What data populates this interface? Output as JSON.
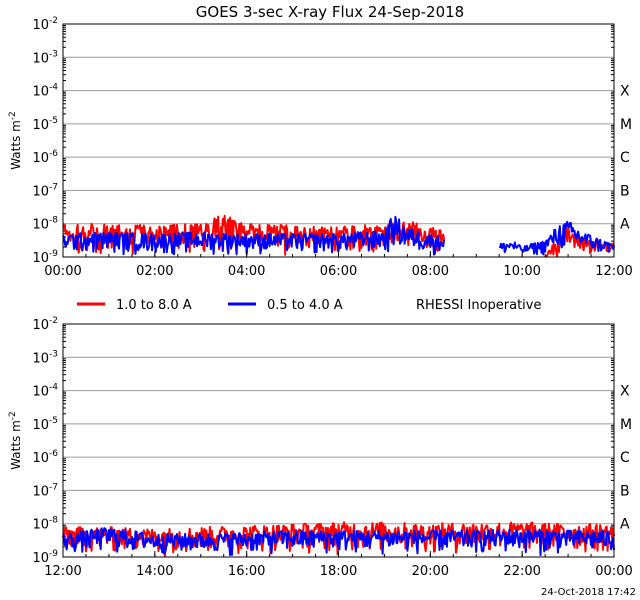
{
  "chart_data": {
    "type": "line",
    "title": "GOES 3-sec X-ray Flux   24-Sep-2018",
    "ylabel": "Watts m",
    "ylabel_superscript": "-2",
    "y_scale": "log",
    "ylim": [
      1e-09,
      0.01
    ],
    "y_ticks": [
      {
        "base": "10",
        "exp": "-2",
        "value": 0.01
      },
      {
        "base": "10",
        "exp": "-3",
        "value": 0.001
      },
      {
        "base": "10",
        "exp": "-4",
        "value": 0.0001
      },
      {
        "base": "10",
        "exp": "-5",
        "value": 1e-05
      },
      {
        "base": "10",
        "exp": "-6",
        "value": 1e-06
      },
      {
        "base": "10",
        "exp": "-7",
        "value": 1e-07
      },
      {
        "base": "10",
        "exp": "-8",
        "value": 1e-08
      },
      {
        "base": "10",
        "exp": "-9",
        "value": 1e-09
      }
    ],
    "flare_classes": [
      {
        "label": "X",
        "value": 0.0001
      },
      {
        "label": "M",
        "value": 1e-05
      },
      {
        "label": "C",
        "value": 1e-06
      },
      {
        "label": "B",
        "value": 1e-07
      },
      {
        "label": "A",
        "value": 1e-08
      }
    ],
    "legend": [
      {
        "label": "1.0 to 8.0 A",
        "color": "#ff0000"
      },
      {
        "label": "0.5 to 4.0 A",
        "color": "#0000ff"
      }
    ],
    "status_note": "RHESSI Inoperative",
    "footer": "24-Oct-2018 17:42",
    "panels": [
      {
        "name": "morning",
        "x_range_hours": [
          0,
          12
        ],
        "x_tick_labels": [
          "00:00",
          "02:00",
          "04:00",
          "06:00",
          "08:00",
          "10:00",
          "12:00"
        ],
        "series": [
          {
            "name": "1.0 to 8.0 A",
            "color": "#ff0000",
            "segments": [
              {
                "t": [
                  0.0,
                  1.0,
                  2.0,
                  3.0,
                  3.5,
                  4.0,
                  5.0,
                  6.0,
                  6.5,
                  7.0,
                  7.5,
                  8.0,
                  8.3
                ],
                "log10_hi": [
                  -8.0,
                  -8.0,
                  -8.05,
                  -8.0,
                  -7.7,
                  -8.0,
                  -8.05,
                  -8.1,
                  -8.05,
                  -8.0,
                  -7.9,
                  -8.1,
                  -8.2
                ],
                "log10_lo": [
                  -9.0,
                  -9.0,
                  -9.0,
                  -9.0,
                  -9.0,
                  -9.0,
                  -9.0,
                  -9.0,
                  -9.0,
                  -9.0,
                  -9.0,
                  -9.0,
                  -9.0
                ]
              },
              {
                "t": [
                  10.5,
                  10.8,
                  11.0,
                  11.2,
                  11.5,
                  12.0
                ],
                "log10_hi": [
                  -9.0,
                  -8.3,
                  -8.1,
                  -8.3,
                  -8.5,
                  -8.6
                ],
                "log10_lo": [
                  -9.0,
                  -9.0,
                  -9.0,
                  -9.0,
                  -9.0,
                  -9.0
                ]
              }
            ]
          },
          {
            "name": "0.5 to 4.0 A",
            "color": "#0000ff",
            "segments": [
              {
                "t": [
                  0.0,
                  1.0,
                  2.0,
                  3.0,
                  4.0,
                  5.0,
                  6.0,
                  7.0,
                  7.2,
                  7.5,
                  8.0,
                  8.3
                ],
                "log10_hi": [
                  -8.3,
                  -8.25,
                  -8.3,
                  -8.25,
                  -8.3,
                  -8.3,
                  -8.3,
                  -8.2,
                  -7.7,
                  -8.1,
                  -8.3,
                  -8.4
                ],
                "log10_lo": [
                  -9.0,
                  -9.0,
                  -9.0,
                  -9.0,
                  -9.0,
                  -9.0,
                  -9.0,
                  -9.0,
                  -9.0,
                  -9.0,
                  -9.0,
                  -9.0
                ]
              },
              {
                "t": [
                  9.5,
                  9.8,
                  10.0,
                  10.2,
                  10.5,
                  10.8,
                  11.0,
                  11.3,
                  11.6,
                  12.0
                ],
                "log10_hi": [
                  -8.6,
                  -8.5,
                  -8.7,
                  -8.6,
                  -8.5,
                  -8.0,
                  -7.9,
                  -8.2,
                  -8.4,
                  -8.6
                ],
                "log10_lo": [
                  -9.0,
                  -9.0,
                  -9.0,
                  -9.0,
                  -9.0,
                  -9.0,
                  -9.0,
                  -9.0,
                  -9.0,
                  -9.0
                ]
              }
            ]
          }
        ]
      },
      {
        "name": "afternoon",
        "x_range_hours": [
          12,
          24
        ],
        "x_tick_labels": [
          "12:00",
          "14:00",
          "16:00",
          "18:00",
          "20:00",
          "22:00",
          "00:00"
        ],
        "series": [
          {
            "name": "1.0 to 8.0 A",
            "color": "#ff0000",
            "segments": [
              {
                "t": [
                  12.0,
                  13.0,
                  14.0,
                  15.0,
                  16.0,
                  17.0,
                  18.0,
                  19.0,
                  20.0,
                  21.0,
                  22.0,
                  23.0,
                  24.0
                ],
                "log10_hi": [
                  -8.1,
                  -8.1,
                  -8.15,
                  -8.1,
                  -8.05,
                  -8.0,
                  -7.95,
                  -7.95,
                  -8.0,
                  -7.95,
                  -7.95,
                  -8.0,
                  -8.0
                ],
                "log10_lo": [
                  -9.0,
                  -9.0,
                  -9.0,
                  -9.0,
                  -9.0,
                  -9.0,
                  -9.0,
                  -9.0,
                  -9.0,
                  -9.0,
                  -9.0,
                  -9.0,
                  -9.0
                ]
              }
            ]
          },
          {
            "name": "0.5 to 4.0 A",
            "color": "#0000ff",
            "segments": [
              {
                "t": [
                  12.0,
                  13.0,
                  14.0,
                  15.0,
                  16.0,
                  17.0,
                  18.0,
                  19.0,
                  20.0,
                  21.0,
                  22.0,
                  23.0,
                  24.0
                ],
                "log10_hi": [
                  -8.3,
                  -8.1,
                  -8.3,
                  -8.3,
                  -8.25,
                  -8.2,
                  -8.2,
                  -8.2,
                  -8.2,
                  -8.2,
                  -8.15,
                  -8.2,
                  -8.2
                ],
                "log10_lo": [
                  -9.0,
                  -9.0,
                  -9.0,
                  -9.0,
                  -9.0,
                  -9.0,
                  -9.0,
                  -9.0,
                  -9.0,
                  -9.0,
                  -9.0,
                  -9.0,
                  -9.0
                ]
              }
            ]
          }
        ]
      }
    ]
  }
}
